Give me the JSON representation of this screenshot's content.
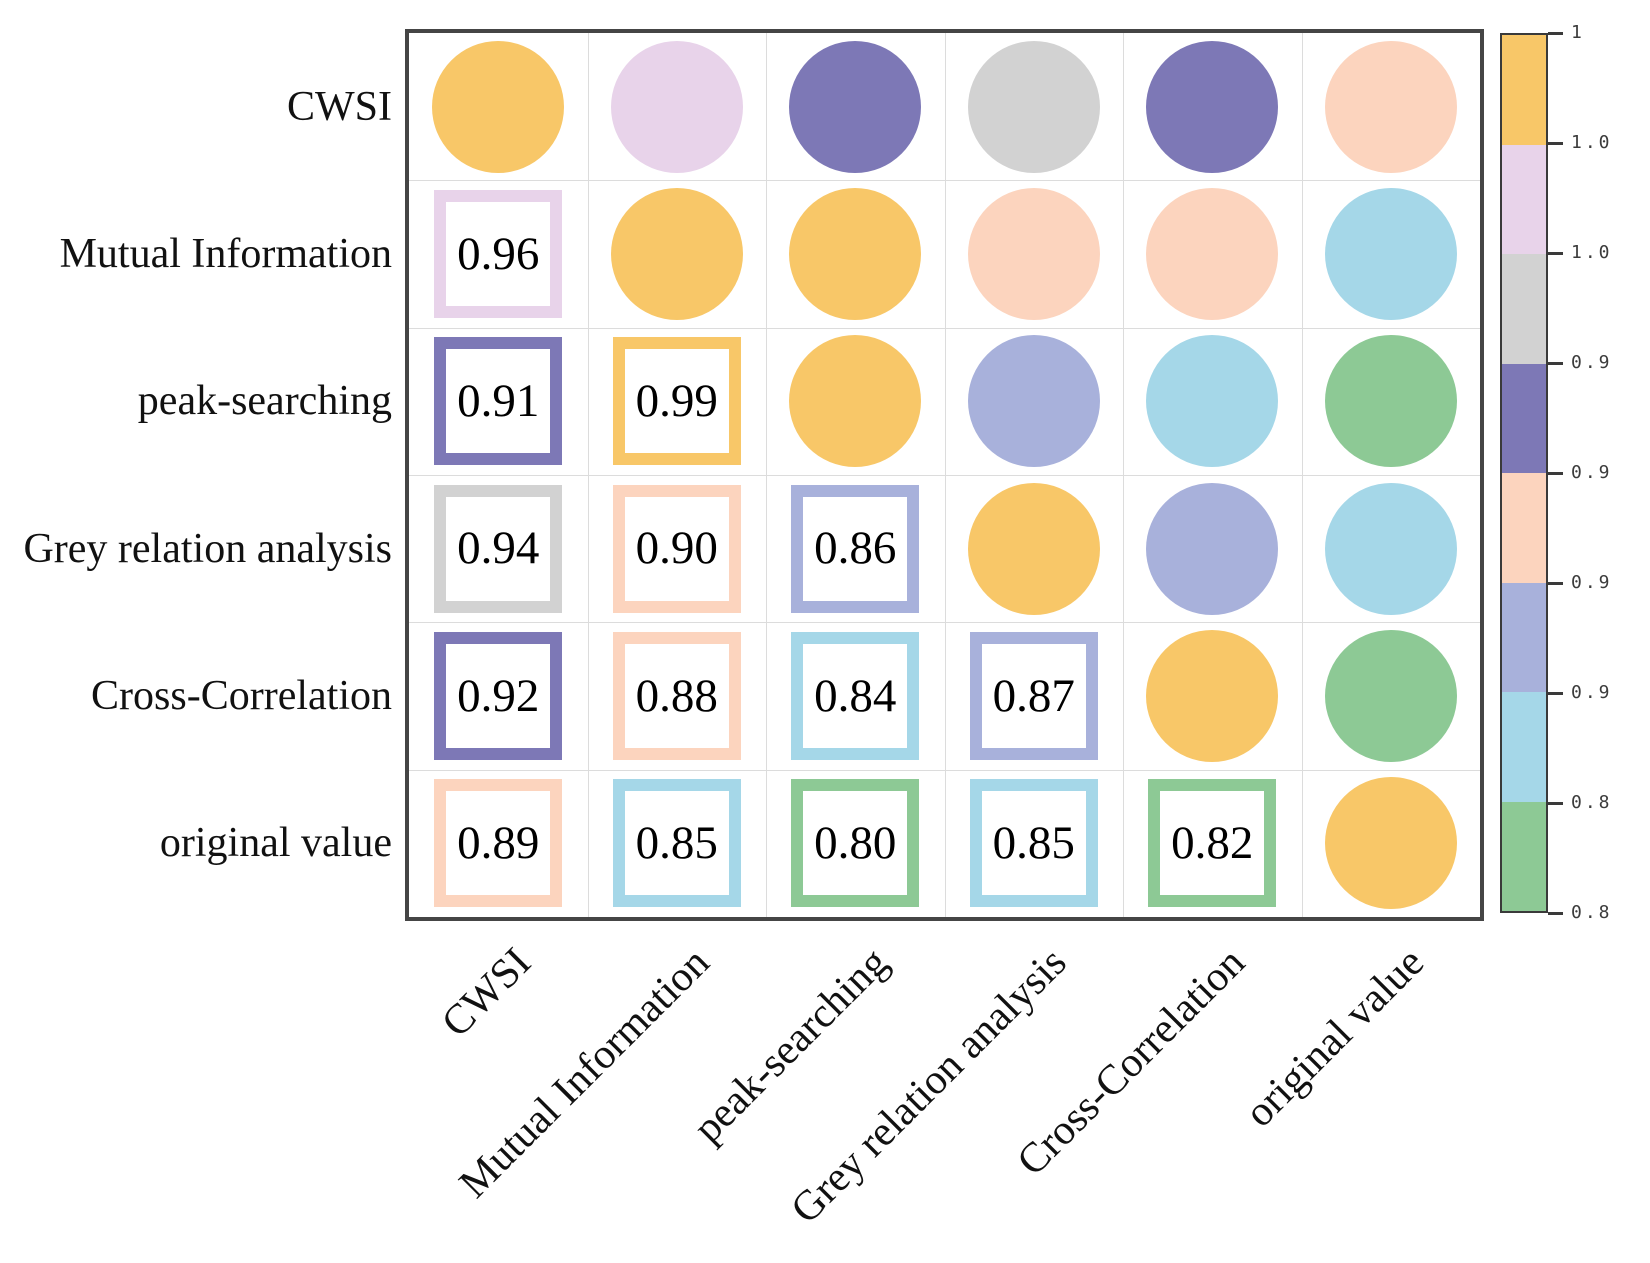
{
  "chart_data": {
    "type": "heatmap",
    "subtype": "correlation-matrix-corrplot",
    "title": "",
    "variables": [
      "CWSI",
      "Mutual Information",
      "peak-searching",
      "Grey relation analysis",
      "Cross-Correlation",
      "original value"
    ],
    "matrix": [
      [
        1.0,
        0.96,
        0.91,
        0.94,
        0.92,
        0.89
      ],
      [
        0.96,
        1.0,
        0.99,
        0.9,
        0.88,
        0.85
      ],
      [
        0.91,
        0.99,
        1.0,
        0.86,
        0.84,
        0.8
      ],
      [
        0.94,
        0.9,
        0.86,
        1.0,
        0.87,
        0.85
      ],
      [
        0.92,
        0.88,
        0.84,
        0.87,
        1.0,
        0.82
      ],
      [
        0.89,
        0.85,
        0.8,
        0.85,
        0.82,
        1.0
      ]
    ],
    "lower_triangle_display": [
      [],
      [
        "0.96"
      ],
      [
        "0.91",
        "0.99"
      ],
      [
        "0.94",
        "0.90",
        "0.86"
      ],
      [
        "0.92",
        "0.88",
        "0.84",
        "0.87"
      ],
      [
        "0.89",
        "0.85",
        "0.80",
        "0.85",
        "0.82"
      ]
    ],
    "upper_triangle_glyph": "circle",
    "diagonal_glyph": "circle",
    "lower_triangle_glyph": "square-outline-with-number",
    "grid": true,
    "x_tick_rotation_deg": 45,
    "colorbar": {
      "position": "right",
      "tick_labels": [
        "1",
        "1.0",
        "1.0",
        "0.9",
        "0.9",
        "0.9",
        "0.9",
        "0.8",
        "0.8"
      ],
      "bands_top_to_bottom": [
        {
          "color": "#F8C768",
          "value_min": 0.975,
          "name": "yellow"
        },
        {
          "color": "#E8D3EA",
          "value_min": 0.95,
          "name": "pink"
        },
        {
          "color": "#D2D2D2",
          "value_min": 0.925,
          "name": "gray"
        },
        {
          "color": "#7D78B6",
          "value_min": 0.9,
          "name": "purple"
        },
        {
          "color": "#FCD4BE",
          "value_min": 0.875,
          "name": "peach"
        },
        {
          "color": "#A8B1DB",
          "value_min": 0.85,
          "name": "periwinkle"
        },
        {
          "color": "#A5D7E8",
          "value_min": 0.825,
          "name": "light-blue"
        },
        {
          "color": "#8DC995",
          "value_min": 0.0,
          "name": "green"
        }
      ]
    }
  }
}
